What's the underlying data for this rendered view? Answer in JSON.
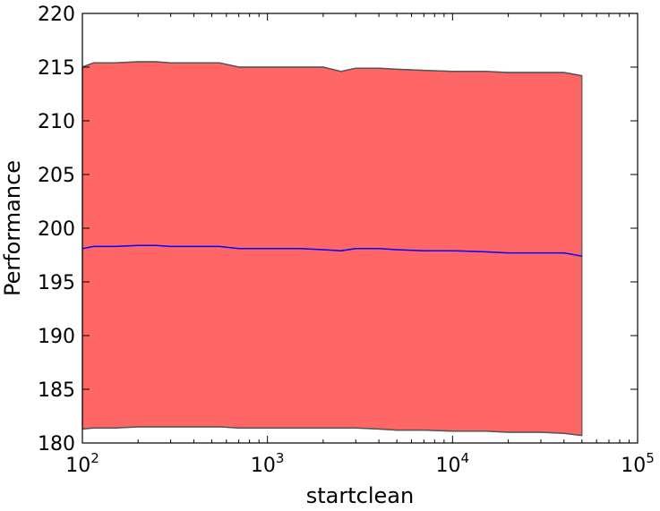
{
  "chart_data": {
    "type": "area",
    "title": "",
    "xlabel": "startclean",
    "ylabel": "Performance",
    "x_scale": "log",
    "xlim": [
      100,
      100000
    ],
    "ylim": [
      180,
      220
    ],
    "grid": false,
    "x_ticks": [
      {
        "value": 100,
        "base": "10",
        "exp": "2"
      },
      {
        "value": 1000,
        "base": "10",
        "exp": "3"
      },
      {
        "value": 10000,
        "base": "10",
        "exp": "4"
      },
      {
        "value": 100000,
        "base": "10",
        "exp": "5"
      }
    ],
    "y_ticks": [
      180,
      185,
      190,
      195,
      200,
      205,
      210,
      215,
      220
    ],
    "colors": {
      "band": "#ff6666",
      "band_edge": "#555555",
      "line": "#0000ff"
    },
    "series": [
      {
        "x": [
          100,
          115,
          150,
          200,
          250,
          300,
          400,
          550,
          700,
          1000,
          1500,
          2000,
          2500,
          3000,
          4000,
          5000,
          7000,
          10000,
          15000,
          20000,
          30000,
          40000,
          50000
        ],
        "upper": [
          215.0,
          215.4,
          215.4,
          215.5,
          215.5,
          215.4,
          215.4,
          215.4,
          215.0,
          215.0,
          215.0,
          215.0,
          214.6,
          214.9,
          214.9,
          214.8,
          214.7,
          214.6,
          214.6,
          214.5,
          214.5,
          214.5,
          214.2
        ],
        "mean": [
          198.1,
          198.3,
          198.3,
          198.4,
          198.4,
          198.3,
          198.3,
          198.3,
          198.1,
          198.1,
          198.1,
          198.0,
          197.9,
          198.1,
          198.1,
          198.0,
          197.9,
          197.9,
          197.8,
          197.7,
          197.7,
          197.7,
          197.4
        ],
        "lower": [
          181.3,
          181.4,
          181.4,
          181.5,
          181.5,
          181.5,
          181.5,
          181.5,
          181.4,
          181.4,
          181.4,
          181.4,
          181.4,
          181.4,
          181.3,
          181.2,
          181.2,
          181.1,
          181.1,
          181.0,
          181.0,
          180.9,
          180.7
        ]
      }
    ]
  }
}
